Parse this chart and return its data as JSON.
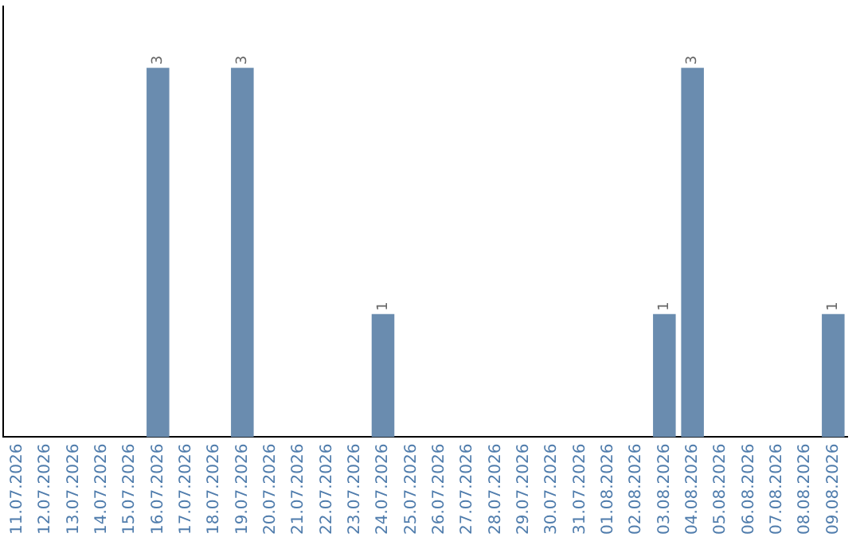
{
  "chart_data": {
    "type": "bar",
    "categories": [
      "11.07.2026",
      "12.07.2026",
      "13.07.2026",
      "14.07.2026",
      "15.07.2026",
      "16.07.2026",
      "17.07.2026",
      "18.07.2026",
      "19.07.2026",
      "20.07.2026",
      "21.07.2026",
      "22.07.2026",
      "23.07.2026",
      "24.07.2026",
      "25.07.2026",
      "26.07.2026",
      "27.07.2026",
      "28.07.2026",
      "29.07.2026",
      "30.07.2026",
      "31.07.2026",
      "01.08.2026",
      "02.08.2026",
      "03.08.2026",
      "04.08.2026",
      "05.08.2026",
      "06.08.2026",
      "07.08.2026",
      "08.08.2026",
      "09.08.2026"
    ],
    "values": [
      null,
      null,
      null,
      null,
      null,
      3,
      null,
      null,
      3,
      null,
      null,
      null,
      null,
      1,
      null,
      null,
      null,
      null,
      null,
      null,
      null,
      null,
      null,
      1,
      3,
      null,
      null,
      null,
      null,
      1
    ],
    "color": "#6a8caf",
    "data_labels": true,
    "tick_labels": "x",
    "grid": false,
    "legend": false
  }
}
